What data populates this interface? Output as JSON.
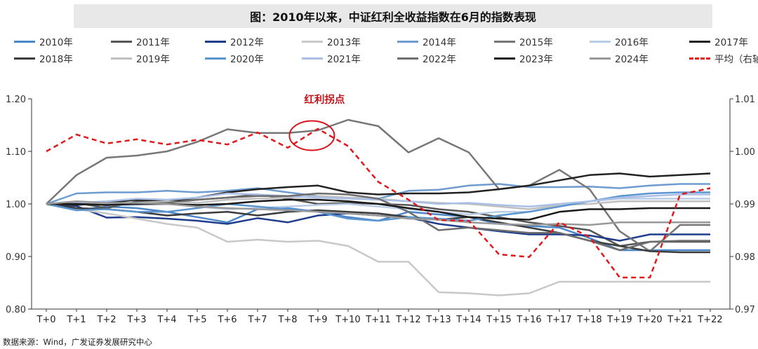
{
  "title": "图：2010年以来，中证红利全收益指数在6月的指数表现",
  "source": "数据来源：Wind，广发证券发展研究中心",
  "annotation": "红利拐点",
  "chart_data": {
    "type": "line",
    "x": [
      "T+0",
      "T+1",
      "T+2",
      "T+3",
      "T+4",
      "T+5",
      "T+6",
      "T+7",
      "T+8",
      "T+9",
      "T+10",
      "T+11",
      "T+12",
      "T+13",
      "T+14",
      "T+15",
      "T+16",
      "T+17",
      "T+18",
      "T+19",
      "T+20",
      "T+21",
      "T+22"
    ],
    "left_axis": {
      "range": [
        0.8,
        1.2
      ],
      "ticks": [
        "0.80",
        "0.90",
        "1.00",
        "1.10",
        "1.20"
      ]
    },
    "right_axis": {
      "range": [
        0.97,
        1.01
      ],
      "ticks": [
        "0.97",
        "0.98",
        "0.99",
        "1.00",
        "1.01"
      ]
    },
    "grid": false,
    "legend_position": "top",
    "series": [
      {
        "name": "2010年",
        "color": "#4a86c8",
        "dash": false,
        "axis": "left",
        "values": [
          1.0,
          0.988,
          0.995,
          0.992,
          0.985,
          0.975,
          0.965,
          0.99,
          0.992,
          0.985,
          0.975,
          0.968,
          0.985,
          0.98,
          0.975,
          0.962,
          0.958,
          0.955,
          0.935,
          0.912,
          0.912,
          0.912,
          0.912
        ]
      },
      {
        "name": "2011年",
        "color": "#555555",
        "dash": false,
        "axis": "left",
        "values": [
          1.0,
          1.002,
          0.992,
          1.005,
          1.003,
          1.008,
          1.012,
          1.018,
          1.01,
          1.0,
          1.002,
          1.0,
          0.998,
          0.99,
          0.985,
          0.975,
          0.965,
          0.958,
          0.95,
          0.92,
          0.928,
          0.928,
          0.928
        ]
      },
      {
        "name": "2012年",
        "color": "#1f3d8c",
        "dash": false,
        "axis": "left",
        "values": [
          1.0,
          0.996,
          0.974,
          0.975,
          0.972,
          0.968,
          0.962,
          0.973,
          0.965,
          0.978,
          0.982,
          0.978,
          0.974,
          0.962,
          0.955,
          0.948,
          0.942,
          0.942,
          0.94,
          0.93,
          0.942,
          0.942,
          0.942
        ]
      },
      {
        "name": "2013年",
        "color": "#c8c8c8",
        "dash": false,
        "axis": "left",
        "values": [
          1.0,
          0.99,
          0.982,
          0.972,
          0.962,
          0.955,
          0.928,
          0.932,
          0.928,
          0.93,
          0.92,
          0.89,
          0.89,
          0.832,
          0.83,
          0.826,
          0.83,
          0.852,
          0.852,
          0.852,
          0.852,
          0.852,
          0.852
        ]
      },
      {
        "name": "2014年",
        "color": "#6e9bd0",
        "dash": false,
        "axis": "left",
        "values": [
          1.0,
          1.02,
          1.022,
          1.022,
          1.025,
          1.022,
          1.025,
          1.03,
          1.022,
          1.015,
          1.012,
          1.01,
          1.025,
          1.027,
          1.035,
          1.038,
          1.032,
          1.032,
          1.033,
          1.03,
          1.035,
          1.038,
          1.038
        ]
      },
      {
        "name": "2015年",
        "color": "#777777",
        "dash": false,
        "axis": "left",
        "values": [
          1.0,
          1.055,
          1.088,
          1.092,
          1.1,
          1.118,
          1.142,
          1.135,
          1.135,
          1.14,
          1.16,
          1.148,
          1.098,
          1.125,
          1.098,
          1.028,
          1.035,
          1.065,
          1.028,
          0.948,
          0.91,
          0.96,
          0.96
        ]
      },
      {
        "name": "2016年",
        "color": "#b9cce6",
        "dash": false,
        "axis": "left",
        "values": [
          1.0,
          1.0,
          0.998,
          0.998,
          1.0,
          0.995,
          0.99,
          0.992,
          0.995,
          0.998,
          1.0,
          0.995,
          0.99,
          0.985,
          0.98,
          0.985,
          0.985,
          0.998,
          1.005,
          1.01,
          1.01,
          1.01,
          1.01
        ]
      },
      {
        "name": "2017年",
        "color": "#222222",
        "dash": false,
        "axis": "left",
        "values": [
          1.0,
          0.998,
          1.002,
          1.008,
          1.005,
          1.012,
          1.022,
          1.028,
          1.032,
          1.035,
          1.022,
          1.018,
          1.02,
          1.02,
          1.022,
          1.028,
          1.035,
          1.045,
          1.055,
          1.058,
          1.052,
          1.055,
          1.058
        ]
      },
      {
        "name": "2018年",
        "color": "#3c3c3c",
        "dash": false,
        "axis": "left",
        "values": [
          1.0,
          0.992,
          0.99,
          0.985,
          0.978,
          0.982,
          0.985,
          0.978,
          0.985,
          0.988,
          0.985,
          0.982,
          0.975,
          0.97,
          0.975,
          0.965,
          0.955,
          0.945,
          0.93,
          0.92,
          0.91,
          0.908,
          0.908
        ]
      },
      {
        "name": "2019年",
        "color": "#c0c0c0",
        "dash": false,
        "axis": "left",
        "values": [
          1.0,
          1.002,
          1.0,
          1.002,
          1.005,
          1.002,
          1.008,
          1.01,
          1.012,
          1.015,
          1.012,
          1.01,
          1.005,
          1.002,
          1.0,
          0.995,
          0.99,
          0.998,
          1.0,
          1.005,
          1.005,
          1.005,
          1.005
        ]
      },
      {
        "name": "2020年",
        "color": "#5b95cf",
        "dash": false,
        "axis": "left",
        "values": [
          1.0,
          0.988,
          0.99,
          0.985,
          0.985,
          0.992,
          1.0,
          0.995,
          0.99,
          0.985,
          0.972,
          0.968,
          0.975,
          0.972,
          0.968,
          0.978,
          0.985,
          0.995,
          1.005,
          1.015,
          1.02,
          1.022,
          1.022
        ]
      },
      {
        "name": "2021年",
        "color": "#aabfe6",
        "dash": false,
        "axis": "left",
        "values": [
          1.0,
          1.002,
          1.005,
          1.01,
          1.008,
          1.012,
          1.02,
          1.018,
          1.015,
          1.012,
          1.01,
          1.008,
          1.005,
          1.0,
          1.002,
          0.998,
          0.995,
          1.0,
          1.005,
          1.012,
          1.015,
          1.018,
          1.018
        ]
      },
      {
        "name": "2022年",
        "color": "#6e6e6e",
        "dash": false,
        "axis": "left",
        "values": [
          1.0,
          1.0,
          0.998,
          1.0,
          1.002,
          1.008,
          1.012,
          1.015,
          1.015,
          1.02,
          1.018,
          1.01,
          0.985,
          0.95,
          0.955,
          0.95,
          0.945,
          0.945,
          0.93,
          0.912,
          0.928,
          0.93,
          0.93
        ]
      },
      {
        "name": "2023年",
        "color": "#1a1a1a",
        "dash": false,
        "axis": "left",
        "values": [
          1.0,
          1.0,
          0.998,
          1.0,
          1.0,
          0.998,
          1.0,
          1.005,
          1.008,
          1.008,
          1.005,
          1.0,
          0.992,
          0.985,
          0.975,
          0.972,
          0.97,
          0.985,
          0.99,
          0.99,
          0.992,
          0.992,
          0.992
        ]
      },
      {
        "name": "2024年",
        "color": "#999999",
        "dash": false,
        "axis": "left",
        "values": [
          1.0,
          1.005,
          1.002,
          1.002,
          1.0,
          0.995,
          0.992,
          0.99,
          0.988,
          0.985,
          0.982,
          0.978,
          0.972,
          0.97,
          0.965,
          0.962,
          0.96,
          0.962,
          0.96,
          0.965,
          0.965,
          0.965,
          0.965
        ]
      },
      {
        "name": "平均（右轴）",
        "color": "#e0191c",
        "dash": true,
        "axis": "right",
        "values": [
          1.0,
          1.0032,
          1.0015,
          1.0023,
          1.0013,
          1.0022,
          1.0013,
          1.0036,
          1.0007,
          1.0043,
          1.001,
          0.9942,
          0.9908,
          0.9869,
          0.9868,
          0.9804,
          0.9799,
          0.9865,
          0.9837,
          0.976,
          0.976,
          0.9918,
          0.993
        ]
      }
    ]
  }
}
